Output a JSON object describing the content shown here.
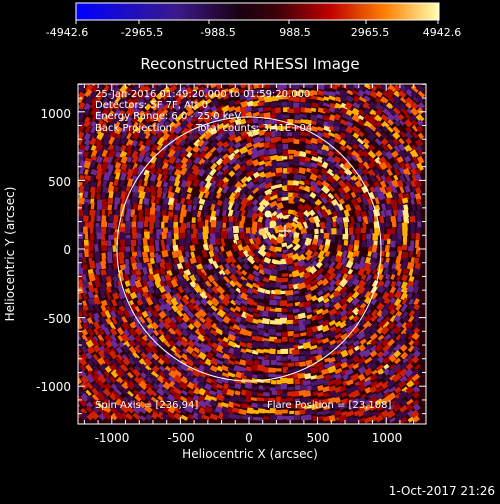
{
  "colorbar": {
    "ticks": [
      "-4942.6",
      "-2965.5",
      "-988.5",
      "988.5",
      "2965.5",
      "4942.6"
    ]
  },
  "title": "Reconstructed RHESSI Image",
  "info": {
    "line1": "25-Jan-2016 01:49:20.000 to 01:59:20.000",
    "line2": "Detectors: 5F 7F, Att 0",
    "line3": "Energy Range: 6.0 - 25.0 keV",
    "line4_a": "Back Projection",
    "line4_b": "Total counts: 3.41E+04",
    "spin_axis": "Spin Axis = [236,94]",
    "flare_position": "Flare Position = [23,108]"
  },
  "axes": {
    "xlabel": "Heliocentric X (arcsec)",
    "ylabel": "Heliocentric Y (arcsec)",
    "xticks": [
      "-1000",
      "-500",
      "0",
      "500",
      "1000"
    ],
    "yticks": [
      "1000",
      "500",
      "0",
      "-500",
      "-1000"
    ]
  },
  "footer_timestamp": "1-Oct-2017 21:26",
  "colors": {
    "background": "#000000",
    "foreground": "#ffffff"
  }
}
